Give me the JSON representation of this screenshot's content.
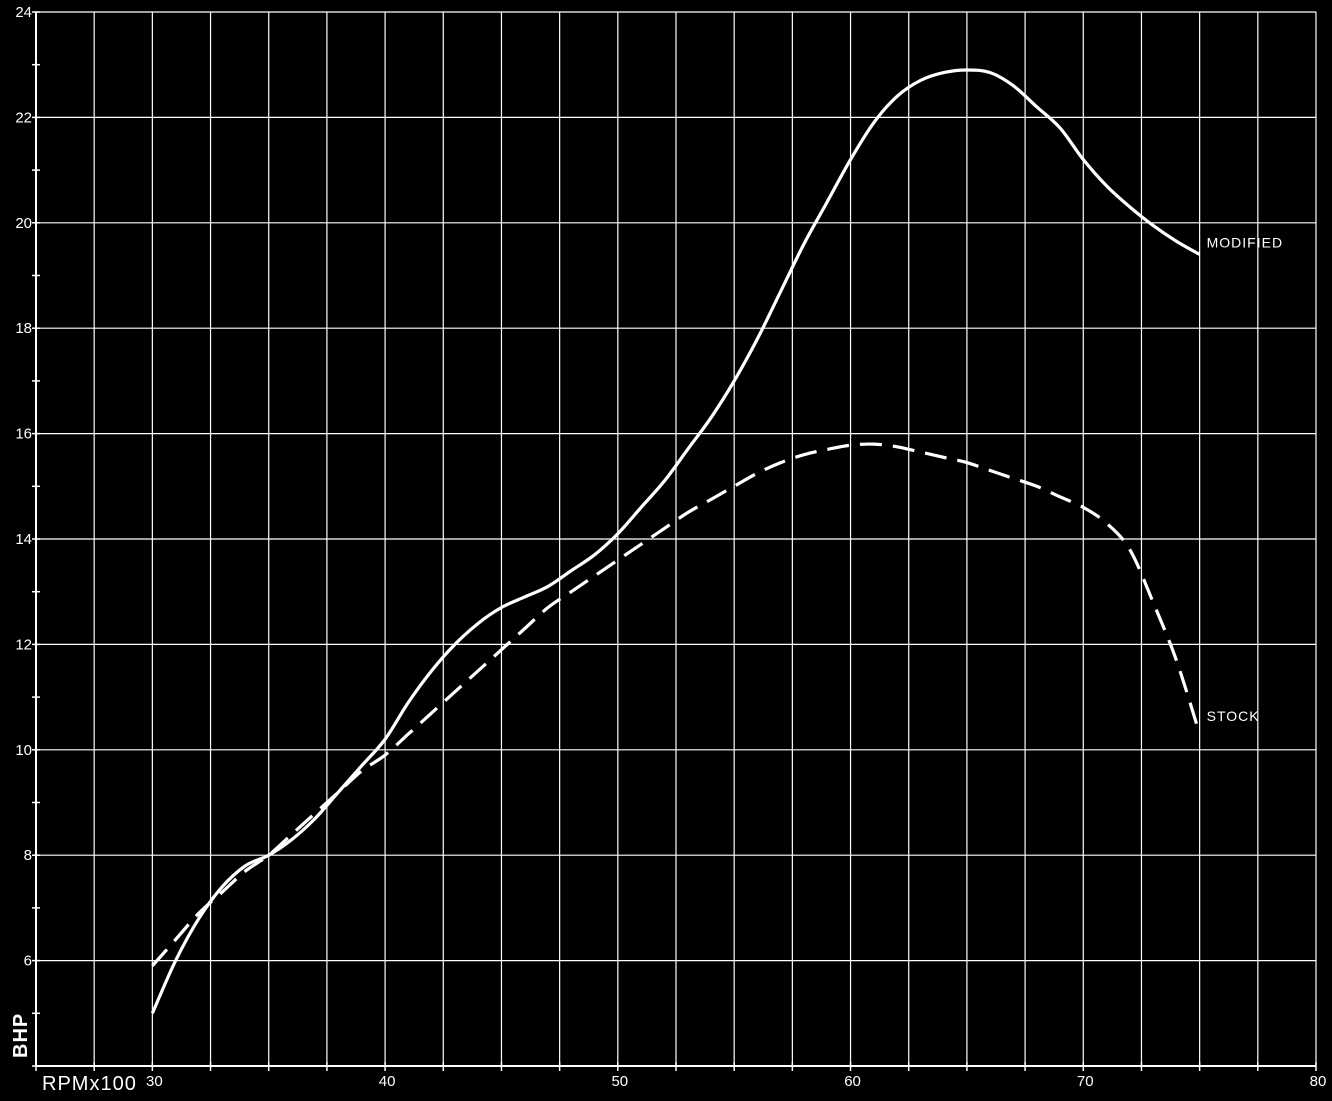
{
  "chart_data": {
    "type": "line",
    "title": "",
    "xlabel": "RPMx100",
    "ylabel": "BHP",
    "xlim": [
      25,
      80
    ],
    "ylim": [
      4,
      24
    ],
    "grid": true,
    "x_ticks": [
      30,
      40,
      50,
      60,
      70,
      80
    ],
    "y_ticks": [
      6,
      8,
      10,
      12,
      14,
      16,
      18,
      20,
      22,
      24
    ],
    "colors": {
      "background": "#000000",
      "foreground": "#ffffff"
    },
    "series": [
      {
        "name": "MODIFIED",
        "style": "solid",
        "x": [
          30,
          31,
          32,
          33,
          34,
          35,
          36,
          37,
          38,
          39,
          40,
          41,
          42,
          43,
          44,
          45,
          46,
          47,
          48,
          49,
          50,
          51,
          52,
          53,
          54,
          55,
          56,
          57,
          58,
          59,
          60,
          61,
          62,
          63,
          64,
          65,
          66,
          67,
          68,
          69,
          70,
          71,
          72,
          73,
          74,
          75
        ],
        "values": [
          5.0,
          6.0,
          6.8,
          7.4,
          7.8,
          8.0,
          8.3,
          8.7,
          9.2,
          9.7,
          10.2,
          10.9,
          11.5,
          12.0,
          12.4,
          12.7,
          12.9,
          13.1,
          13.4,
          13.7,
          14.1,
          14.6,
          15.1,
          15.7,
          16.3,
          17.0,
          17.8,
          18.7,
          19.6,
          20.4,
          21.2,
          21.9,
          22.4,
          22.7,
          22.85,
          22.9,
          22.85,
          22.6,
          22.2,
          21.8,
          21.2,
          20.7,
          20.3,
          19.95,
          19.65,
          19.4
        ]
      },
      {
        "name": "STOCK",
        "style": "dashed",
        "x": [
          30,
          31,
          32,
          33,
          34,
          35,
          36,
          37,
          38,
          39,
          40,
          41,
          42,
          43,
          44,
          45,
          46,
          47,
          48,
          49,
          50,
          51,
          52,
          53,
          54,
          55,
          56,
          57,
          58,
          59,
          60,
          61,
          62,
          63,
          64,
          65,
          66,
          67,
          68,
          69,
          70,
          71,
          72,
          73,
          74,
          75
        ],
        "values": [
          5.9,
          6.4,
          6.9,
          7.3,
          7.7,
          8.0,
          8.4,
          8.8,
          9.2,
          9.6,
          9.9,
          10.3,
          10.7,
          11.1,
          11.5,
          11.9,
          12.3,
          12.7,
          13.0,
          13.3,
          13.6,
          13.9,
          14.2,
          14.5,
          14.75,
          15.0,
          15.25,
          15.45,
          15.6,
          15.7,
          15.78,
          15.8,
          15.75,
          15.65,
          15.55,
          15.45,
          15.3,
          15.15,
          15.0,
          14.8,
          14.6,
          14.3,
          13.8,
          12.8,
          11.7,
          10.3
        ]
      }
    ]
  }
}
